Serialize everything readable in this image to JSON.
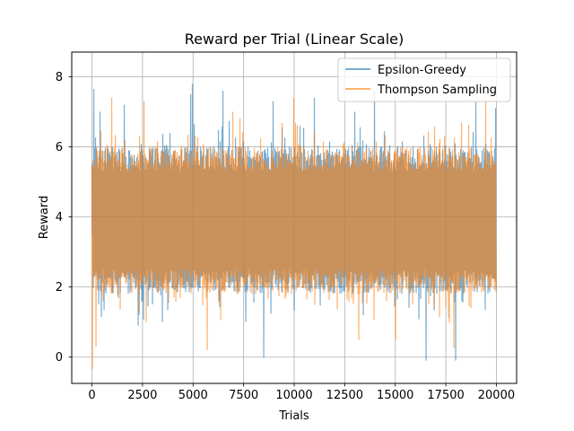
{
  "chart_data": {
    "type": "line",
    "title": "Reward per Trial (Linear Scale)",
    "xlabel": "Trials",
    "ylabel": "Reward",
    "xlim": [
      -1000,
      21000
    ],
    "ylim": [
      -0.75,
      8.7
    ],
    "xticks": [
      0,
      2500,
      5000,
      7500,
      10000,
      12500,
      15000,
      17500,
      20000
    ],
    "xtick_labels": [
      "0",
      "2500",
      "5000",
      "7500",
      "10000",
      "12500",
      "15000",
      "17500",
      "20000"
    ],
    "yticks": [
      0,
      2,
      4,
      6,
      8
    ],
    "ytick_labels": [
      "0",
      "2",
      "4",
      "6",
      "8"
    ],
    "grid": true,
    "legend_position": "top-right",
    "series": [
      {
        "name": "Epsilon-Greedy",
        "color": "#1f77b4",
        "opacity": 0.6,
        "x_range": [
          0,
          20000
        ],
        "band_low": 1.8,
        "band_high": 6.0,
        "points": [
          [
            0,
            3.5
          ],
          [
            100,
            7.65
          ],
          [
            400,
            7.0
          ],
          [
            1600,
            7.2
          ],
          [
            2300,
            0.9
          ],
          [
            3500,
            1.0
          ],
          [
            4900,
            7.5
          ],
          [
            5000,
            7.8
          ],
          [
            6500,
            7.6
          ],
          [
            7600,
            1.0
          ],
          [
            8500,
            -0.02
          ],
          [
            9000,
            7.3
          ],
          [
            11000,
            7.4
          ],
          [
            13000,
            7.0
          ],
          [
            14000,
            7.6
          ],
          [
            16500,
            -0.1
          ],
          [
            18000,
            -0.1
          ],
          [
            19000,
            7.3
          ],
          [
            20000,
            7.1
          ]
        ]
      },
      {
        "name": "Thompson Sampling",
        "color": "#ff7f0e",
        "opacity": 0.6,
        "x_range": [
          0,
          20000
        ],
        "band_low": 1.8,
        "band_high": 6.0,
        "points": [
          [
            0,
            -0.35
          ],
          [
            200,
            0.3
          ],
          [
            1000,
            7.4
          ],
          [
            2600,
            7.3
          ],
          [
            5700,
            0.2
          ],
          [
            7000,
            7.0
          ],
          [
            10000,
            7.4
          ],
          [
            13200,
            0.5
          ],
          [
            15000,
            0.5
          ],
          [
            17900,
            0.25
          ],
          [
            19500,
            7.4
          ],
          [
            20000,
            5.5
          ]
        ]
      }
    ]
  }
}
